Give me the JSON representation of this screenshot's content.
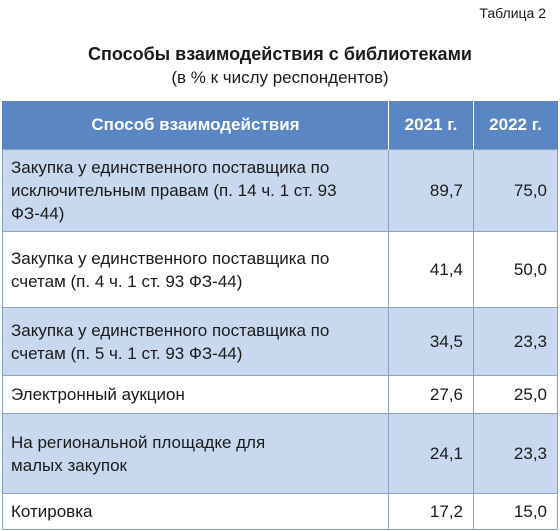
{
  "table_label": "Таблица 2",
  "title": "Способы взаимодействия с библиотеками",
  "subtitle": "(в % к числу респондентов)",
  "headers": [
    "Способ взаимодействия",
    "2021 г.",
    "2022 г."
  ],
  "rows": [
    {
      "method": "Закупка у единственного поставщика по исключительным правам (п. 14 ч. 1 ст. 93 ФЗ-44)",
      "y2021": "89,7",
      "y2022": "75,0"
    },
    {
      "method": "Закупка у единственного поставщика по счетам (п. 4 ч. 1 ст. 93 ФЗ-44)",
      "y2021": "41,4",
      "y2022": "50,0"
    },
    {
      "method": "Закупка у единственного поставщика по счетам (п. 5 ч. 1 ст. 93 ФЗ-44)",
      "y2021": "34,5",
      "y2022": "23,3"
    },
    {
      "method": "Электронный аукцион",
      "y2021": "27,6",
      "y2022": "25,0"
    },
    {
      "method": "На региональной площадке для малых закупок",
      "y2021": "24,1",
      "y2022": "23,3"
    },
    {
      "method": "Котировка",
      "y2021": "17,2",
      "y2022": "15,0"
    }
  ],
  "colors": {
    "header_bg": "#5a86c3",
    "shaded_row": "#c8d9ef"
  }
}
